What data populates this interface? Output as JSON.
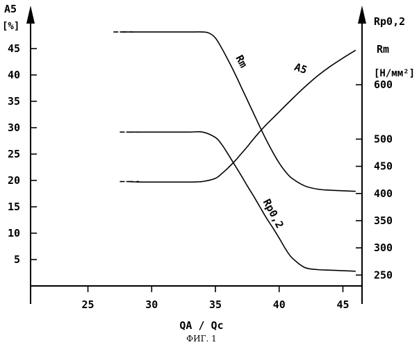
{
  "chart_data": {
    "type": "line",
    "x": [
      27.5,
      28,
      29,
      30,
      31,
      32,
      33,
      34,
      35,
      36,
      37,
      38,
      39,
      40,
      41,
      42,
      43,
      44,
      45,
      46
    ],
    "xlabel": "QA / Qc",
    "xticks": [
      "25",
      "30",
      "35",
      "40",
      "45"
    ],
    "xlim": [
      20.5,
      46.5
    ],
    "left_axis": {
      "label": "A5",
      "unit": "[%]",
      "ticks": [
        "5",
        "10",
        "15",
        "20",
        "25",
        "30",
        "35",
        "40",
        "45"
      ],
      "ylim": [
        0,
        50
      ]
    },
    "right_axis": {
      "label_top": "Rp0,2",
      "label_bottom": "Rm",
      "unit": "[Н/мм²]",
      "ticks": [
        "250",
        "300",
        "350",
        "400",
        "450",
        "500",
        "600"
      ],
      "ylim": [
        230,
        715
      ]
    },
    "series": [
      {
        "name": "Rm",
        "axis": "right",
        "x": [
          27.5,
          29,
          30,
          31,
          32,
          33,
          34,
          34.5,
          35,
          35.5,
          36,
          36.5,
          37,
          37.5,
          38,
          38.5,
          39,
          39.5,
          40,
          40.5,
          41,
          42,
          43,
          44,
          45,
          46
        ],
        "values": [
          697,
          697,
          697,
          697,
          697,
          697,
          697,
          695,
          686,
          667,
          645,
          622,
          597,
          572,
          547,
          522,
          498,
          476,
          456,
          440,
          428,
          414,
          408,
          406,
          405,
          404
        ]
      },
      {
        "name": "Rp0,2",
        "axis": "right",
        "x": [
          28,
          29,
          30,
          31,
          32,
          33,
          34,
          35,
          35.5,
          36,
          36.5,
          37,
          37.5,
          38,
          38.5,
          39,
          39.5,
          40,
          40.5,
          41,
          42,
          43,
          44,
          45,
          46
        ],
        "values": [
          513,
          513,
          513,
          513,
          513,
          513,
          513,
          503,
          490,
          472,
          453,
          434,
          414,
          395,
          375,
          355,
          337,
          318,
          298,
          282,
          264,
          260,
          259,
          258,
          257
        ]
      },
      {
        "name": "A5",
        "axis": "left",
        "x": [
          28,
          29,
          30,
          31,
          32,
          33,
          34,
          35,
          35.5,
          36,
          36.5,
          37,
          37.5,
          38,
          38.5,
          39,
          39.5,
          40,
          41,
          42,
          43,
          44,
          45,
          46
        ],
        "values": [
          19.8,
          19.7,
          19.7,
          19.7,
          19.7,
          19.7,
          19.8,
          20.4,
          21.3,
          22.4,
          23.6,
          25,
          26.4,
          27.9,
          29.3,
          30.6,
          31.8,
          33,
          35.4,
          37.7,
          39.8,
          41.6,
          43.2,
          44.7
        ]
      }
    ],
    "lead_in": [
      {
        "series": "Rm",
        "x": [
          27,
          28.5
        ],
        "value": 697,
        "axis": "right"
      },
      {
        "series": "Rp0,2",
        "x": [
          27.5,
          29
        ],
        "value": 513,
        "axis": "right"
      },
      {
        "series": "A5",
        "x": [
          27.5,
          29
        ],
        "value": 19.8,
        "axis": "left"
      }
    ],
    "caption": "ФИГ. 1",
    "grid": false,
    "legend": "none"
  }
}
